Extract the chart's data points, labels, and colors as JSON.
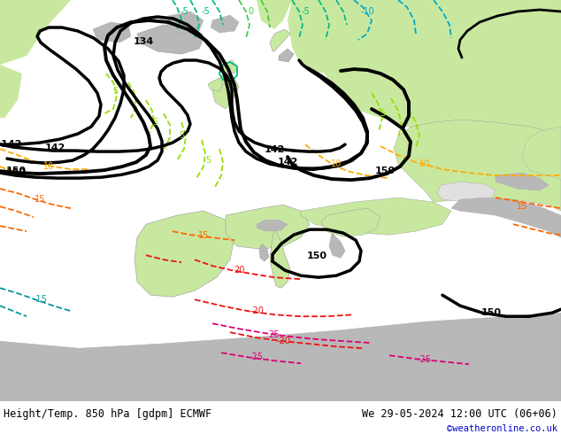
{
  "title_left": "Height/Temp. 850 hPa [gdpm] ECMWF",
  "title_right": "We 29-05-2024 12:00 UTC (06+06)",
  "copyright": "©weatheronline.co.uk",
  "figsize": [
    6.34,
    4.9
  ],
  "dpi": 100,
  "bg_ocean": "#e0e0e0",
  "bg_land_green": "#c8e8a0",
  "bg_land_gray": "#b8b8b8",
  "bottom_text_color": "#000000",
  "copyright_color": "#0000cc"
}
